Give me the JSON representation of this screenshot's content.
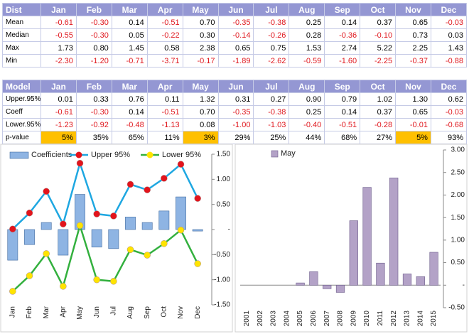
{
  "tables": [
    {
      "header": [
        "Dist",
        "Jan",
        "Feb",
        "Mar",
        "Apr",
        "May",
        "Jun",
        "Jul",
        "Aug",
        "Sep",
        "Oct",
        "Nov",
        "Dec"
      ],
      "rows": [
        [
          "Mean",
          "-0.61",
          "-0.30",
          "0.14",
          "-0.51",
          "0.70",
          "-0.35",
          "-0.38",
          "0.25",
          "0.14",
          "0.37",
          "0.65",
          "-0.03"
        ],
        [
          "Median",
          "-0.55",
          "-0.30",
          "0.05",
          "-0.22",
          "0.30",
          "-0.14",
          "-0.26",
          "0.28",
          "-0.36",
          "-0.10",
          "0.73",
          "0.03"
        ],
        [
          "Max",
          "1.73",
          "0.80",
          "1.45",
          "0.58",
          "2.38",
          "0.65",
          "0.75",
          "1.53",
          "2.74",
          "5.22",
          "2.25",
          "1.43"
        ],
        [
          "Min",
          "-2.30",
          "-1.20",
          "-0.71",
          "-3.71",
          "-0.17",
          "-1.89",
          "-2.62",
          "-0.59",
          "-1.60",
          "-2.25",
          "-0.37",
          "-0.88"
        ]
      ]
    },
    {
      "header": [
        "Model",
        "Jan",
        "Feb",
        "Mar",
        "Apr",
        "May",
        "Jun",
        "Jul",
        "Aug",
        "Sep",
        "Oct",
        "Nov",
        "Dec"
      ],
      "rows": [
        [
          "Upper.95%",
          "0.01",
          "0.33",
          "0.76",
          "0.11",
          "1.32",
          "0.31",
          "0.27",
          "0.90",
          "0.79",
          "1.02",
          "1.30",
          "0.62"
        ],
        [
          "Coeff",
          "-0.61",
          "-0.30",
          "0.14",
          "-0.51",
          "0.70",
          "-0.35",
          "-0.38",
          "0.25",
          "0.14",
          "0.37",
          "0.65",
          "-0.03"
        ],
        [
          "Lower.95%",
          "-1.23",
          "-0.92",
          "-0.48",
          "-1.13",
          "0.08",
          "-1.00",
          "-1.03",
          "-0.40",
          "-0.51",
          "-0.28",
          "-0.01",
          "-0.68"
        ],
        [
          "p-value",
          "5%",
          "35%",
          "65%",
          "11%",
          "3%",
          "29%",
          "25%",
          "44%",
          "68%",
          "27%",
          "5%",
          "93%"
        ]
      ]
    }
  ],
  "chart_data": [
    {
      "type": "bar-line",
      "categories": [
        "Jan",
        "Feb",
        "Mar",
        "Apr",
        "May",
        "Jun",
        "Jul",
        "Aug",
        "Sep",
        "Oct",
        "Nov",
        "Dec"
      ],
      "series": [
        {
          "name": "Coefficients",
          "kind": "bar",
          "color": "#8eb4e3",
          "values": [
            -0.61,
            -0.3,
            0.14,
            -0.51,
            0.7,
            -0.35,
            -0.38,
            0.25,
            0.14,
            0.37,
            0.65,
            -0.03
          ]
        },
        {
          "name": "Upper 95%",
          "kind": "line",
          "color": "#1ea7e1",
          "marker_color": "#e3141c",
          "values": [
            0.01,
            0.33,
            0.76,
            0.11,
            1.32,
            0.31,
            0.27,
            0.9,
            0.79,
            1.02,
            1.3,
            0.62
          ]
        },
        {
          "name": "Lower 95%",
          "kind": "line",
          "color": "#33b03e",
          "marker_color": "#ffe400",
          "values": [
            -1.23,
            -0.92,
            -0.48,
            -1.13,
            0.08,
            -1.0,
            -1.03,
            -0.4,
            -0.51,
            -0.28,
            -0.01,
            -0.68
          ]
        }
      ],
      "ylim": [
        -1.5,
        1.5
      ],
      "yticks": [
        {
          "value": 1.5,
          "label": "1.50"
        },
        {
          "value": 1,
          "label": "1.00"
        },
        {
          "value": 0.5,
          "label": "0.50"
        },
        {
          "value": 0,
          "label": "-"
        },
        {
          "value": -0.5,
          "label": "-0.50"
        },
        {
          "value": -1,
          "label": "-1.00"
        },
        {
          "value": -1.5,
          "label": "-1.50"
        }
      ]
    },
    {
      "type": "bar",
      "categories": [
        "2001",
        "2002",
        "2003",
        "2004",
        "2005",
        "2006",
        "2007",
        "2008",
        "2009",
        "2010",
        "2011",
        "2012",
        "2013",
        "2014",
        "2015"
      ],
      "series": [
        {
          "name": "May",
          "kind": "bar",
          "color": "#b3a2c7",
          "values": [
            0,
            0,
            0,
            0,
            0.05,
            0.3,
            -0.08,
            -0.16,
            1.43,
            2.17,
            0.49,
            2.38,
            0.25,
            0.19,
            0.73
          ]
        }
      ],
      "ylim": [
        -0.5,
        3
      ],
      "yticks": [
        {
          "value": 3,
          "label": "3.00"
        },
        {
          "value": 2.5,
          "label": "2.50"
        },
        {
          "value": 2,
          "label": "2.00"
        },
        {
          "value": 1.5,
          "label": "1.50"
        },
        {
          "value": 1,
          "label": "1.00"
        },
        {
          "value": 0.5,
          "label": "0.50"
        },
        {
          "value": 0,
          "label": "-"
        },
        {
          "value": -0.5,
          "label": "-0.50"
        }
      ]
    }
  ]
}
